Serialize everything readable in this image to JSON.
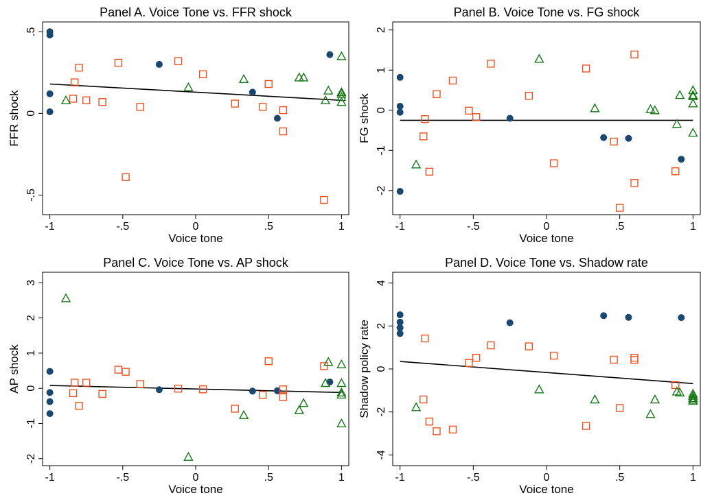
{
  "colors": {
    "circle": "#1a476f",
    "square": "#f0501e",
    "triangle": "#147814",
    "fit": "#000000"
  },
  "chart_data": [
    {
      "type": "scatter",
      "title": "Panel A. Voice Tone vs. FFR shock",
      "xlabel": "Voice tone",
      "ylabel": "FFR shock",
      "xlim": [
        -1.05,
        1.05
      ],
      "ylim": [
        -0.62,
        0.56
      ],
      "xticks": [
        -1,
        -0.5,
        0,
        0.5,
        1
      ],
      "xtick_labels": [
        "-1",
        "-.5",
        "0",
        ".5",
        "1"
      ],
      "yticks": [
        -0.5,
        0,
        0.5
      ],
      "ytick_labels": [
        "-.5",
        "0",
        ".5"
      ],
      "grid": false,
      "fit_line": {
        "x": [
          -1,
          1
        ],
        "y": [
          0.18,
          0.08
        ]
      },
      "series": [
        {
          "marker": "circle",
          "x": [
            -1,
            -1,
            -1,
            -1,
            -0.25,
            0.39,
            0.56,
            0.92
          ],
          "y": [
            0.5,
            0.48,
            0.12,
            0.01,
            0.3,
            0.13,
            -0.03,
            0.36
          ]
        },
        {
          "marker": "square",
          "x": [
            -0.84,
            -0.83,
            -0.8,
            -0.75,
            -0.64,
            -0.53,
            -0.48,
            -0.38,
            -0.12,
            0.05,
            0.27,
            0.46,
            0.5,
            0.6,
            0.6,
            0.88
          ],
          "y": [
            0.09,
            0.19,
            0.28,
            0.08,
            0.07,
            0.31,
            -0.39,
            0.04,
            0.32,
            0.24,
            0.06,
            0.04,
            0.18,
            0.02,
            -0.11,
            -0.53
          ]
        },
        {
          "marker": "triangle",
          "x": [
            -0.89,
            -0.05,
            0.33,
            0.71,
            0.74,
            0.89,
            0.91,
            1,
            1,
            1,
            1,
            1
          ],
          "y": [
            0.08,
            0.16,
            0.21,
            0.22,
            0.22,
            0.08,
            0.14,
            0.35,
            0.13,
            0.12,
            0.1,
            0.07
          ]
        }
      ]
    },
    {
      "type": "scatter",
      "title": "Panel B. Voice Tone vs. FG shock",
      "xlabel": "Voice tone",
      "ylabel": "FG shock",
      "xlim": [
        -1.05,
        1.05
      ],
      "ylim": [
        -2.6,
        2.2
      ],
      "xticks": [
        -1,
        -0.5,
        0,
        0.5,
        1
      ],
      "xtick_labels": [
        "-1",
        "-.5",
        "0",
        ".5",
        "1"
      ],
      "yticks": [
        -2,
        -1,
        0,
        1,
        2
      ],
      "ytick_labels": [
        "-2",
        "-1",
        "0",
        "1",
        "2"
      ],
      "grid": false,
      "fit_line": {
        "x": [
          -1,
          1
        ],
        "y": [
          -0.25,
          -0.25
        ]
      },
      "series": [
        {
          "marker": "circle",
          "x": [
            -1,
            -1,
            -1,
            -1,
            -0.25,
            0.39,
            0.56,
            0.92
          ],
          "y": [
            0.82,
            0.1,
            -0.05,
            -2.02,
            -0.2,
            -0.68,
            -0.7,
            -1.22
          ]
        },
        {
          "marker": "square",
          "x": [
            -0.84,
            -0.83,
            -0.8,
            -0.75,
            -0.64,
            -0.53,
            -0.48,
            -0.38,
            -0.12,
            0.05,
            0.27,
            0.46,
            0.5,
            0.6,
            0.6,
            0.88
          ],
          "y": [
            -0.65,
            -0.22,
            -1.53,
            0.4,
            0.74,
            -0.01,
            -0.17,
            1.16,
            0.36,
            -1.32,
            1.04,
            -0.78,
            -2.43,
            1.39,
            -1.81,
            -1.52
          ]
        },
        {
          "marker": "triangle",
          "x": [
            -0.89,
            -0.05,
            0.33,
            0.71,
            0.74,
            0.89,
            0.91,
            1,
            1,
            1,
            1,
            1
          ],
          "y": [
            -1.35,
            1.28,
            0.05,
            0.03,
            0.0,
            -0.34,
            0.38,
            0.5,
            0.38,
            0.35,
            0.17,
            -0.56
          ]
        }
      ]
    },
    {
      "type": "scatter",
      "title": "Panel C. Voice Tone vs. AP shock",
      "xlabel": "Voice tone",
      "ylabel": "AP shock",
      "xlim": [
        -1.05,
        1.05
      ],
      "ylim": [
        -2.2,
        3.3
      ],
      "xticks": [
        -1,
        -0.5,
        0,
        0.5,
        1
      ],
      "xtick_labels": [
        "-1",
        "-.5",
        "0",
        ".5",
        "1"
      ],
      "yticks": [
        -2,
        -1,
        0,
        1,
        2,
        3
      ],
      "ytick_labels": [
        "-2",
        "-1",
        "0",
        "1",
        "2",
        "3"
      ],
      "grid": false,
      "fit_line": {
        "x": [
          -1,
          1
        ],
        "y": [
          0.08,
          -0.12
        ]
      },
      "series": [
        {
          "marker": "circle",
          "x": [
            -1,
            -1,
            -1,
            -1,
            -0.25,
            0.39,
            0.56,
            0.92
          ],
          "y": [
            0.48,
            -0.12,
            -0.38,
            -0.72,
            -0.04,
            -0.08,
            -0.07,
            0.18
          ]
        },
        {
          "marker": "square",
          "x": [
            -0.84,
            -0.83,
            -0.8,
            -0.75,
            -0.64,
            -0.53,
            -0.48,
            -0.38,
            -0.12,
            0.05,
            0.27,
            0.46,
            0.5,
            0.6,
            0.6,
            0.88
          ],
          "y": [
            -0.14,
            0.16,
            -0.5,
            0.16,
            -0.16,
            0.53,
            0.47,
            0.12,
            -0.01,
            -0.03,
            -0.58,
            -0.19,
            0.77,
            -0.03,
            -0.25,
            0.63
          ]
        },
        {
          "marker": "triangle",
          "x": [
            -0.89,
            -0.05,
            0.33,
            0.71,
            0.74,
            0.89,
            0.91,
            1,
            1,
            1,
            1,
            1
          ],
          "y": [
            2.56,
            -1.95,
            -0.76,
            -0.62,
            -0.42,
            0.15,
            0.75,
            0.68,
            0.15,
            -0.12,
            -0.18,
            -1.0
          ]
        }
      ]
    },
    {
      "type": "scatter",
      "title": "Panel D. Voice Tone vs. Shadow rate",
      "xlabel": "Voice tone",
      "ylabel": "Shadow policy rate",
      "xlim": [
        -1.05,
        1.05
      ],
      "ylim": [
        -4.5,
        4.5
      ],
      "xticks": [
        -1,
        -0.5,
        0,
        0.5,
        1
      ],
      "xtick_labels": [
        "-1",
        "-.5",
        "0",
        ".5",
        "1"
      ],
      "yticks": [
        -4,
        -2,
        0,
        2,
        4
      ],
      "ytick_labels": [
        "-4",
        "-2",
        "0",
        "2",
        "4"
      ],
      "grid": false,
      "fit_line": {
        "x": [
          -1,
          1
        ],
        "y": [
          0.35,
          -0.68
        ]
      },
      "series": [
        {
          "marker": "circle",
          "x": [
            -1,
            -1,
            -1,
            -1,
            -0.25,
            0.39,
            0.56,
            0.92
          ],
          "y": [
            2.52,
            2.18,
            1.92,
            1.65,
            2.15,
            2.48,
            2.4,
            2.39
          ]
        },
        {
          "marker": "square",
          "x": [
            -0.84,
            -0.83,
            -0.8,
            -0.75,
            -0.64,
            -0.53,
            -0.48,
            -0.38,
            -0.12,
            0.05,
            0.27,
            0.46,
            0.5,
            0.6,
            0.6,
            0.88
          ],
          "y": [
            -1.42,
            1.42,
            -2.45,
            -2.9,
            -2.82,
            0.28,
            0.52,
            1.1,
            1.05,
            0.62,
            -2.65,
            0.43,
            -1.82,
            0.52,
            0.42,
            -0.75
          ]
        },
        {
          "marker": "triangle",
          "x": [
            -0.89,
            -0.05,
            0.33,
            0.71,
            0.74,
            0.89,
            0.91,
            1,
            1,
            1,
            1,
            1
          ],
          "y": [
            -1.78,
            -0.95,
            -1.42,
            -2.1,
            -1.42,
            -1.05,
            -1.1,
            -1.15,
            -1.25,
            -1.35,
            -1.42,
            -1.48
          ]
        }
      ]
    }
  ]
}
